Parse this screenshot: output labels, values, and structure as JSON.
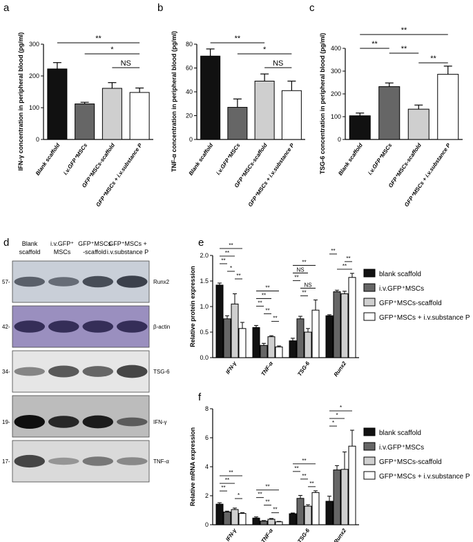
{
  "panel_labels": [
    "a",
    "b",
    "c",
    "d",
    "e",
    "f"
  ],
  "chart_data": [
    {
      "id": "a",
      "type": "bar",
      "ylabel": "IFN-γ concentration in peripheral blood (pg/ml)",
      "categories": [
        "Blank scaffold",
        "i.v.GFP⁺MSCs",
        "GFP⁺MSCs-scaffold",
        "GFP⁺MSCs + i.v.substance P"
      ],
      "values": [
        222,
        112,
        161,
        148
      ],
      "errors": [
        20,
        5,
        18,
        14
      ],
      "colors": [
        "#111111",
        "#666666",
        "#cfcfcf",
        "#ffffff"
      ],
      "ylim": [
        0,
        300
      ],
      "yticks": [
        0,
        100,
        200,
        300
      ],
      "brackets": [
        {
          "from": 0,
          "to": 3,
          "label": "**"
        },
        {
          "from": 1,
          "to": 3,
          "label": "*"
        },
        {
          "from": 2,
          "to": 3,
          "label": "NS"
        }
      ]
    },
    {
      "id": "b",
      "type": "bar",
      "ylabel": "TNF-α concentration in peripheral blood (pg/ml)",
      "categories": [
        "Blank scaffold",
        "i.v.GFP⁺MSCs",
        "GFP⁺MSCs-scaffold",
        "GFP⁺MSCs + i.v.substance P"
      ],
      "values": [
        70,
        27,
        49,
        41
      ],
      "errors": [
        6,
        7,
        6,
        8
      ],
      "colors": [
        "#111111",
        "#666666",
        "#cfcfcf",
        "#ffffff"
      ],
      "ylim": [
        0,
        80
      ],
      "yticks": [
        0,
        20,
        40,
        60,
        80
      ],
      "brackets": [
        {
          "from": 0,
          "to": 2,
          "label": "**"
        },
        {
          "from": 1,
          "to": 3,
          "label": "*"
        },
        {
          "from": 2,
          "to": 3,
          "label": "NS"
        }
      ]
    },
    {
      "id": "c",
      "type": "bar",
      "ylabel": "TSG-6 concentration in peripheral blood (pg/ml)",
      "categories": [
        "Blank scaffold",
        "i.v.GFP⁺MSCs",
        "GFP⁺MSCs-scaffold",
        "GFP⁺MSCs + i.v.substance P"
      ],
      "values": [
        104,
        232,
        133,
        286
      ],
      "errors": [
        12,
        16,
        18,
        36
      ],
      "colors": [
        "#111111",
        "#666666",
        "#cfcfcf",
        "#ffffff"
      ],
      "ylim": [
        0,
        400
      ],
      "yticks": [
        0,
        100,
        200,
        300,
        400
      ],
      "brackets": [
        {
          "from": 0,
          "to": 3,
          "label": "**"
        },
        {
          "from": 0,
          "to": 1,
          "label": "**"
        },
        {
          "from": 1,
          "to": 2,
          "label": "**"
        },
        {
          "from": 2,
          "to": 3,
          "label": "**"
        }
      ]
    },
    {
      "id": "e",
      "type": "bar",
      "ylabel": "Relative protein expression",
      "categories": [
        "IFN-γ",
        "TNF-α",
        "TSG-6",
        "Runx2"
      ],
      "series": [
        {
          "name": "blank scaffold",
          "color": "#111111",
          "values": [
            1.42,
            0.59,
            0.33,
            0.82
          ],
          "errors": [
            0.04,
            0.04,
            0.05,
            0.02
          ]
        },
        {
          "name": "i.v.GFP⁺MSCs",
          "color": "#666666",
          "values": [
            0.76,
            0.24,
            0.76,
            1.29
          ],
          "errors": [
            0.06,
            0.04,
            0.05,
            0.03
          ]
        },
        {
          "name": "GFP⁺MSCs-scaffold",
          "color": "#cfcfcf",
          "values": [
            1.05,
            0.41,
            0.5,
            1.25
          ],
          "errors": [
            0.2,
            0.02,
            0.07,
            0.05
          ]
        },
        {
          "name": "GFP⁺MSCs + i.v.substance P",
          "color": "#ffffff",
          "values": [
            0.57,
            0.21,
            0.93,
            1.57
          ],
          "errors": [
            0.12,
            0.02,
            0.2,
            0.08
          ]
        }
      ],
      "ylim": [
        0,
        2.0
      ],
      "yticks": [
        "0.0",
        "0.5",
        "1.0",
        "1.5",
        "2.0"
      ],
      "brackets": [
        {
          "cat": 0,
          "from": 0,
          "to": 3,
          "label": "**"
        },
        {
          "cat": 0,
          "from": 0,
          "to": 2,
          "label": "**"
        },
        {
          "cat": 0,
          "from": 0,
          "to": 1,
          "label": "**"
        },
        {
          "cat": 0,
          "from": 1,
          "to": 2,
          "label": "*"
        },
        {
          "cat": 0,
          "from": 2,
          "to": 3,
          "label": "**"
        },
        {
          "cat": 1,
          "from": 0,
          "to": 3,
          "label": "**"
        },
        {
          "cat": 1,
          "from": 0,
          "to": 2,
          "label": "**"
        },
        {
          "cat": 1,
          "from": 0,
          "to": 1,
          "label": "**"
        },
        {
          "cat": 1,
          "from": 1,
          "to": 2,
          "label": "**"
        },
        {
          "cat": 1,
          "from": 2,
          "to": 3,
          "label": "**"
        },
        {
          "cat": 2,
          "from": 0,
          "to": 3,
          "label": "**"
        },
        {
          "cat": 2,
          "from": 0,
          "to": 2,
          "label": "NS"
        },
        {
          "cat": 2,
          "from": 0,
          "to": 1,
          "label": "**"
        },
        {
          "cat": 2,
          "from": 1,
          "to": 3,
          "label": "NS"
        },
        {
          "cat": 2,
          "from": 1,
          "to": 2,
          "label": "**"
        },
        {
          "cat": 3,
          "from": 0,
          "to": 1,
          "label": "**"
        },
        {
          "cat": 3,
          "from": 2,
          "to": 3,
          "label": "**"
        },
        {
          "cat": 3,
          "from": 1,
          "to": 3,
          "label": "**"
        }
      ],
      "legend": "right"
    },
    {
      "id": "f",
      "type": "bar",
      "ylabel": "Relative mRNA expression",
      "categories": [
        "IFN-γ",
        "TNF-α",
        "TSG-6",
        "Runx2"
      ],
      "series": [
        {
          "name": "blank scaffold",
          "color": "#111111",
          "values": [
            1.42,
            0.46,
            0.76,
            1.62
          ],
          "errors": [
            0.1,
            0.08,
            0.05,
            0.35
          ]
        },
        {
          "name": "i.v.GFP⁺MSCs",
          "color": "#666666",
          "values": [
            0.88,
            0.25,
            1.82,
            3.78
          ],
          "errors": [
            0.06,
            0.04,
            0.2,
            0.3
          ]
        },
        {
          "name": "GFP⁺MSCs-scaffold",
          "color": "#cfcfcf",
          "values": [
            1.05,
            0.38,
            1.28,
            3.82
          ],
          "errors": [
            0.1,
            0.05,
            0.1,
            1.2
          ]
        },
        {
          "name": "GFP⁺MSCs + i.v.substance P",
          "color": "#ffffff",
          "values": [
            0.78,
            0.2,
            2.22,
            5.42
          ],
          "errors": [
            0.05,
            0.03,
            0.12,
            1.1
          ]
        }
      ],
      "ylim": [
        0,
        8
      ],
      "yticks": [
        "0",
        "2",
        "4",
        "6",
        "8"
      ],
      "brackets": [
        {
          "cat": 0,
          "from": 0,
          "to": 3,
          "label": "**"
        },
        {
          "cat": 0,
          "from": 0,
          "to": 2,
          "label": "**"
        },
        {
          "cat": 0,
          "from": 0,
          "to": 1,
          "label": "**"
        },
        {
          "cat": 0,
          "from": 2,
          "to": 3,
          "label": "*"
        },
        {
          "cat": 1,
          "from": 0,
          "to": 3,
          "label": "**"
        },
        {
          "cat": 1,
          "from": 0,
          "to": 1,
          "label": "**"
        },
        {
          "cat": 1,
          "from": 1,
          "to": 2,
          "label": "**"
        },
        {
          "cat": 1,
          "from": 2,
          "to": 3,
          "label": "**"
        },
        {
          "cat": 2,
          "from": 0,
          "to": 3,
          "label": "**"
        },
        {
          "cat": 2,
          "from": 0,
          "to": 1,
          "label": "**"
        },
        {
          "cat": 2,
          "from": 1,
          "to": 2,
          "label": "**"
        },
        {
          "cat": 2,
          "from": 2,
          "to": 3,
          "label": "**"
        },
        {
          "cat": 3,
          "from": 0,
          "to": 3,
          "label": "*"
        },
        {
          "cat": 3,
          "from": 0,
          "to": 2,
          "label": "*"
        },
        {
          "cat": 3,
          "from": 0,
          "to": 1,
          "label": "*"
        }
      ],
      "legend": "right"
    }
  ],
  "western_blot": {
    "headers": [
      [
        "Blank",
        "scaffold"
      ],
      [
        "i.v.GFP⁺",
        "MSCs"
      ],
      [
        "GFP⁺MSCs",
        "-scaffold"
      ],
      [
        "GFP⁺MSCs +",
        "i.v.substance P"
      ]
    ],
    "rows": [
      {
        "kda": "57-",
        "name": "Runx2",
        "bg": "#c9cfd8",
        "band": "#1a1f2a",
        "intensity": [
          0.55,
          0.45,
          0.7,
          0.8
        ]
      },
      {
        "kda": "42-",
        "name": "β-actin",
        "bg": "#9a8fbf",
        "band": "#1e1740",
        "intensity": [
          0.8,
          0.8,
          0.8,
          0.8
        ]
      },
      {
        "kda": "34-",
        "name": "TSG-6",
        "bg": "#e6e6e6",
        "band": "#303030",
        "intensity": [
          0.4,
          0.75,
          0.65,
          0.9
        ]
      },
      {
        "kda": "19-",
        "name": "IFN-γ",
        "bg": "#bcbcbc",
        "band": "#050505",
        "intensity": [
          1.0,
          0.8,
          0.9,
          0.4
        ]
      },
      {
        "kda": "17-",
        "name": "TNF-α",
        "bg": "#dadada",
        "band": "#2a2a2a",
        "intensity": [
          0.85,
          0.2,
          0.45,
          0.3
        ]
      }
    ]
  }
}
